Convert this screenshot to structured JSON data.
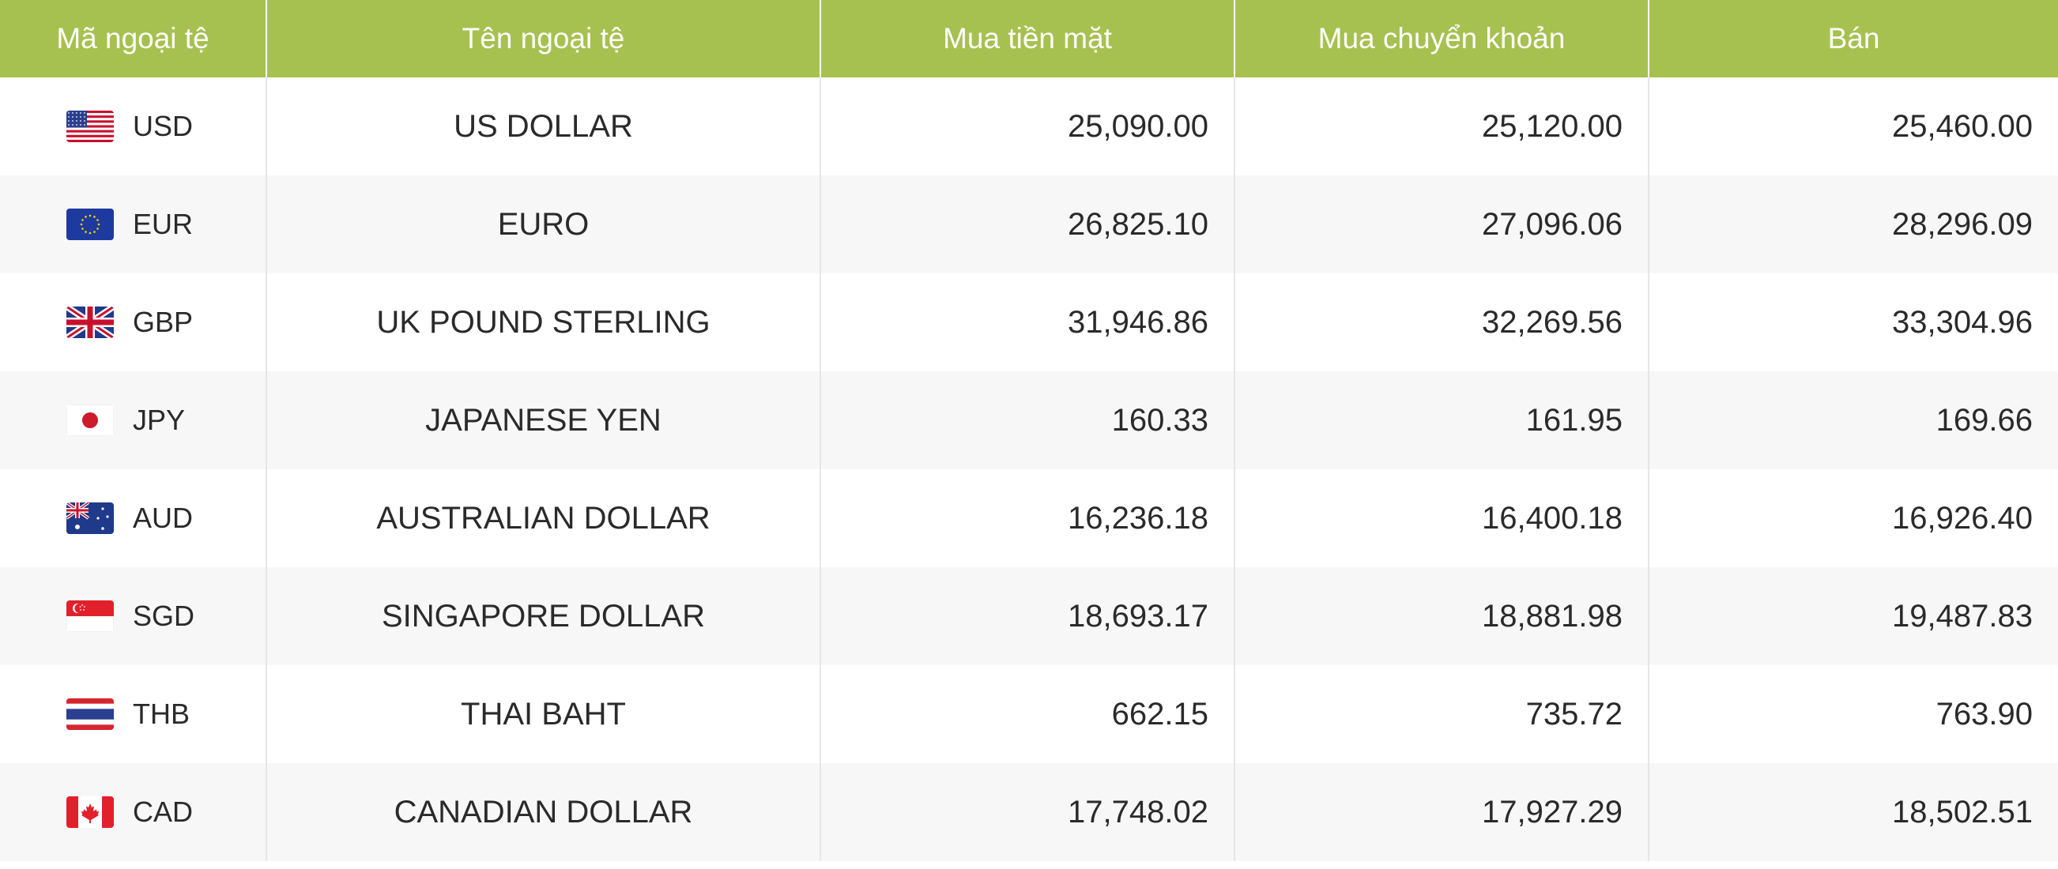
{
  "table": {
    "headers": [
      "Mã ngoại tệ",
      "Tên ngoại tệ",
      "Mua tiền mặt",
      "Mua chuyển khoản",
      "Bán"
    ],
    "rows": [
      {
        "code": "USD",
        "flag": "us-flag-icon",
        "name": "US DOLLAR",
        "cash_buy": "25,090.00",
        "transfer_buy": "25,120.00",
        "sell": "25,460.00"
      },
      {
        "code": "EUR",
        "flag": "eu-flag-icon",
        "name": "EURO",
        "cash_buy": "26,825.10",
        "transfer_buy": "27,096.06",
        "sell": "28,296.09"
      },
      {
        "code": "GBP",
        "flag": "uk-flag-icon",
        "name": "UK POUND STERLING",
        "cash_buy": "31,946.86",
        "transfer_buy": "32,269.56",
        "sell": "33,304.96"
      },
      {
        "code": "JPY",
        "flag": "jp-flag-icon",
        "name": "JAPANESE YEN",
        "cash_buy": "160.33",
        "transfer_buy": "161.95",
        "sell": "169.66"
      },
      {
        "code": "AUD",
        "flag": "au-flag-icon",
        "name": "AUSTRALIAN DOLLAR",
        "cash_buy": "16,236.18",
        "transfer_buy": "16,400.18",
        "sell": "16,926.40"
      },
      {
        "code": "SGD",
        "flag": "sg-flag-icon",
        "name": "SINGAPORE DOLLAR",
        "cash_buy": "18,693.17",
        "transfer_buy": "18,881.98",
        "sell": "19,487.83"
      },
      {
        "code": "THB",
        "flag": "th-flag-icon",
        "name": "THAI BAHT",
        "cash_buy": "662.15",
        "transfer_buy": "735.72",
        "sell": "763.90"
      },
      {
        "code": "CAD",
        "flag": "ca-flag-icon",
        "name": "CANADIAN DOLLAR",
        "cash_buy": "17,748.02",
        "transfer_buy": "17,927.29",
        "sell": "18,502.51"
      }
    ]
  },
  "colors": {
    "header_bg": "#a6c150",
    "header_text": "#ffffff",
    "row_alt_bg": "#f7f7f7",
    "text": "#2a2a2a"
  }
}
